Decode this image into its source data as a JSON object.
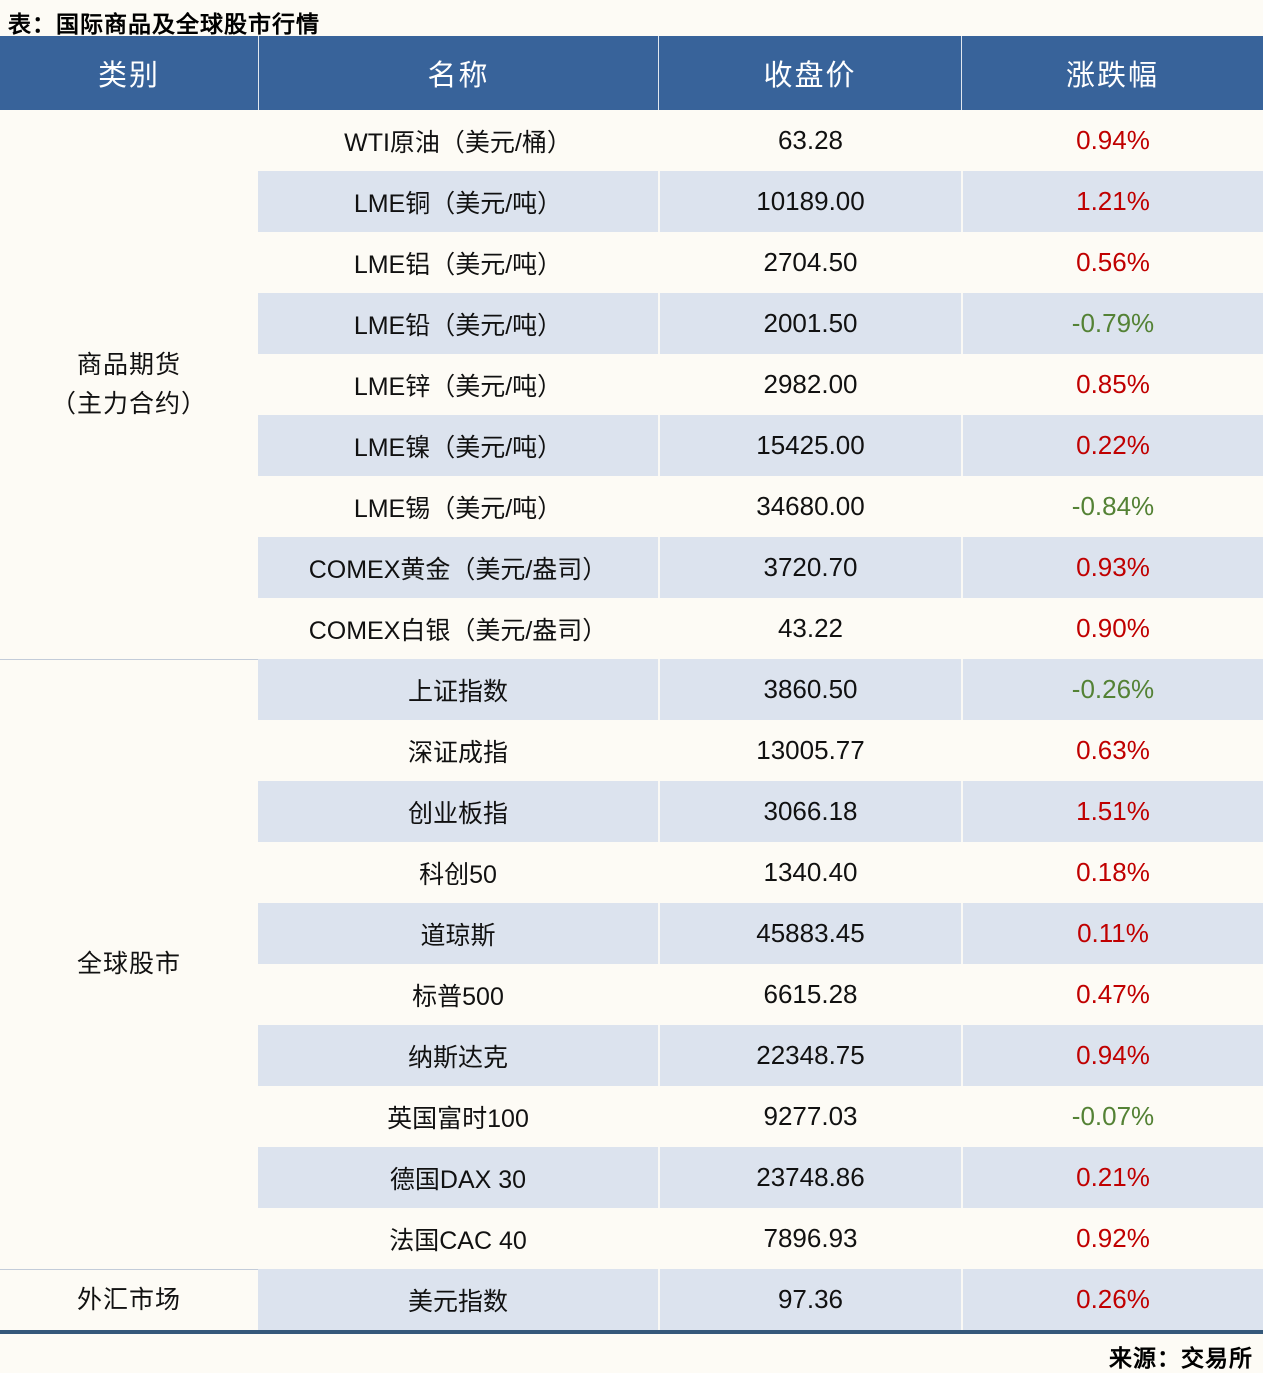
{
  "title": "表：国际商品及全球股市行情",
  "source": "来源：交易所",
  "colors": {
    "header_bg": "#38639a",
    "stripe_bg": "#dce3ee",
    "up_red": "#c00000",
    "down_green": "#548235",
    "page_bg": "#fdfbf5",
    "bottom_border": "#35587a"
  },
  "chart_data": {
    "type": "table",
    "title": "表：国际商品及全球股市行情",
    "columns": [
      "类别",
      "名称",
      "收盘价",
      "涨跌幅"
    ],
    "groups": [
      {
        "category_lines": [
          "商品期货",
          "（主力合约）"
        ],
        "rows": [
          {
            "name": "WTI原油（美元/桶）",
            "close": "63.28",
            "change": "0.94%"
          },
          {
            "name": "LME铜（美元/吨）",
            "close": "10189.00",
            "change": "1.21%"
          },
          {
            "name": "LME铝（美元/吨）",
            "close": "2704.50",
            "change": "0.56%"
          },
          {
            "name": "LME铅（美元/吨）",
            "close": "2001.50",
            "change": "-0.79%"
          },
          {
            "name": "LME锌（美元/吨）",
            "close": "2982.00",
            "change": "0.85%"
          },
          {
            "name": "LME镍（美元/吨）",
            "close": "15425.00",
            "change": "0.22%"
          },
          {
            "name": "LME锡（美元/吨）",
            "close": "34680.00",
            "change": "-0.84%"
          },
          {
            "name": "COMEX黄金（美元/盎司）",
            "close": "3720.70",
            "change": "0.93%"
          },
          {
            "name": "COMEX白银（美元/盎司）",
            "close": "43.22",
            "change": "0.90%"
          }
        ]
      },
      {
        "category_lines": [
          "全球股市"
        ],
        "rows": [
          {
            "name": "上证指数",
            "close": "3860.50",
            "change": "-0.26%"
          },
          {
            "name": "深证成指",
            "close": "13005.77",
            "change": "0.63%"
          },
          {
            "name": "创业板指",
            "close": "3066.18",
            "change": "1.51%"
          },
          {
            "name": "科创50",
            "close": "1340.40",
            "change": "0.18%"
          },
          {
            "name": "道琼斯",
            "close": "45883.45",
            "change": "0.11%"
          },
          {
            "name": "标普500",
            "close": "6615.28",
            "change": "0.47%"
          },
          {
            "name": "纳斯达克",
            "close": "22348.75",
            "change": "0.94%"
          },
          {
            "name": "英国富时100",
            "close": "9277.03",
            "change": "-0.07%"
          },
          {
            "name": "德国DAX 30",
            "close": "23748.86",
            "change": "0.21%"
          },
          {
            "name": "法国CAC 40",
            "close": "7896.93",
            "change": "0.92%"
          }
        ]
      },
      {
        "category_lines": [
          "外汇市场"
        ],
        "rows": [
          {
            "name": "美元指数",
            "close": "97.36",
            "change": "0.26%"
          }
        ]
      }
    ]
  }
}
